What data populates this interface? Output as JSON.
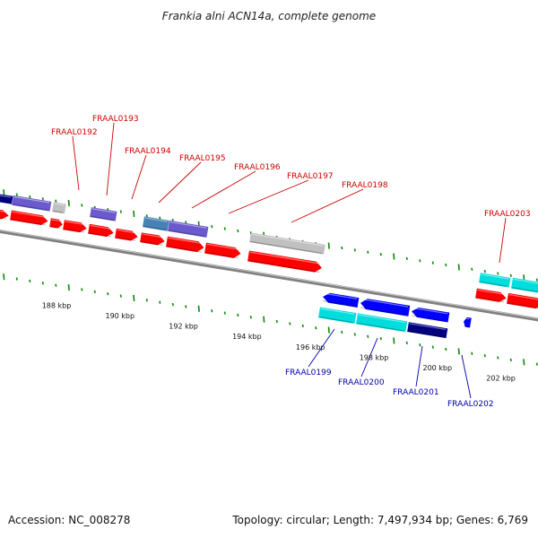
{
  "title": "Frankia alni ACN14a, complete genome",
  "accession": "Accession: NC_008278",
  "summary": "Topology: circular; Length: 7,497,934 bp; Genes: 6,769",
  "colors": {
    "forward_label": "#cc0000",
    "reverse_label": "#0000aa",
    "cds_red": "#ff0000",
    "cds_blue": "#0000ff",
    "cds_cyan": "#00dddd",
    "cds_navy": "#000080",
    "cds_gray": "#c0c0c0",
    "cds_slate": "#4682b4",
    "cds_purple": "#6a5acd",
    "tick": "#0a8a0a",
    "backbone": "#808080"
  },
  "scale_labels": [
    "188 kbp",
    "190 kbp",
    "192 kbp",
    "194 kbp",
    "196 kbp",
    "198 kbp",
    "200 kbp",
    "202 kbp"
  ],
  "forward_gene_labels": [
    "FRAAL0192",
    "FRAAL0193",
    "FRAAL0194",
    "FRAAL0195",
    "FRAAL0196",
    "FRAAL0197",
    "FRAAL0198",
    "FRAAL0203"
  ],
  "reverse_gene_labels": [
    "FRAAL0199",
    "FRAAL0200",
    "FRAAL0201",
    "FRAAL0202"
  ]
}
